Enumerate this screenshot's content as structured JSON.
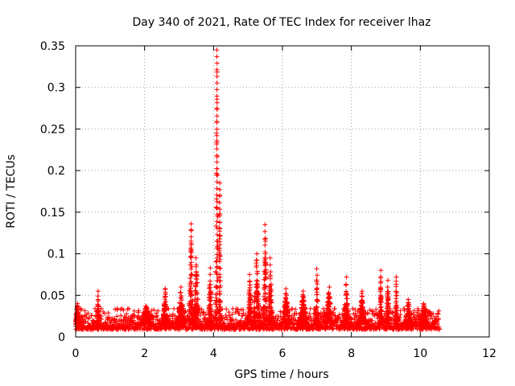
{
  "chart_data": {
    "type": "scatter",
    "title": "Day 340 of 2021, Rate Of TEC Index for receiver lhaz",
    "xlabel": "GPS time / hours",
    "ylabel": "ROTI / TECUs",
    "xlim": [
      0,
      12
    ],
    "ylim": [
      0,
      0.35
    ],
    "x_ticks": [
      "0",
      "2",
      "4",
      "6",
      "8",
      "10",
      "12"
    ],
    "y_ticks": [
      "0",
      "0.05",
      "0.1",
      "0.15",
      "0.2",
      "0.25",
      "0.3",
      "0.35"
    ],
    "grid": true,
    "marker": "+",
    "color": "#ff0000",
    "series": [
      {
        "name": "ROTI",
        "baseline": {
          "x_start": 0.0,
          "x_end": 10.55,
          "y_min": 0.005,
          "y_max": 0.028
        },
        "spikes": [
          {
            "x": 0.05,
            "peak": 0.04,
            "width": 0.08
          },
          {
            "x": 0.65,
            "peak": 0.055,
            "width": 0.03
          },
          {
            "x": 2.05,
            "peak": 0.037,
            "width": 0.15
          },
          {
            "x": 2.6,
            "peak": 0.058,
            "width": 0.08
          },
          {
            "x": 3.05,
            "peak": 0.06,
            "width": 0.1
          },
          {
            "x": 3.35,
            "peak": 0.136,
            "width": 0.07
          },
          {
            "x": 3.5,
            "peak": 0.095,
            "width": 0.08
          },
          {
            "x": 3.9,
            "peak": 0.083,
            "width": 0.06
          },
          {
            "x": 4.1,
            "peak": 0.345,
            "width": 0.04
          },
          {
            "x": 4.18,
            "peak": 0.185,
            "width": 0.03
          },
          {
            "x": 5.05,
            "peak": 0.075,
            "width": 0.06
          },
          {
            "x": 5.25,
            "peak": 0.1,
            "width": 0.1
          },
          {
            "x": 5.5,
            "peak": 0.135,
            "width": 0.06
          },
          {
            "x": 5.65,
            "peak": 0.095,
            "width": 0.06
          },
          {
            "x": 6.1,
            "peak": 0.058,
            "width": 0.1
          },
          {
            "x": 6.6,
            "peak": 0.055,
            "width": 0.12
          },
          {
            "x": 7.0,
            "peak": 0.082,
            "width": 0.05
          },
          {
            "x": 7.35,
            "peak": 0.06,
            "width": 0.1
          },
          {
            "x": 7.85,
            "peak": 0.072,
            "width": 0.07
          },
          {
            "x": 8.3,
            "peak": 0.055,
            "width": 0.1
          },
          {
            "x": 8.85,
            "peak": 0.08,
            "width": 0.04
          },
          {
            "x": 9.05,
            "peak": 0.068,
            "width": 0.06
          },
          {
            "x": 9.3,
            "peak": 0.072,
            "width": 0.05
          },
          {
            "x": 9.65,
            "peak": 0.045,
            "width": 0.1
          },
          {
            "x": 10.1,
            "peak": 0.04,
            "width": 0.12
          }
        ]
      }
    ]
  }
}
